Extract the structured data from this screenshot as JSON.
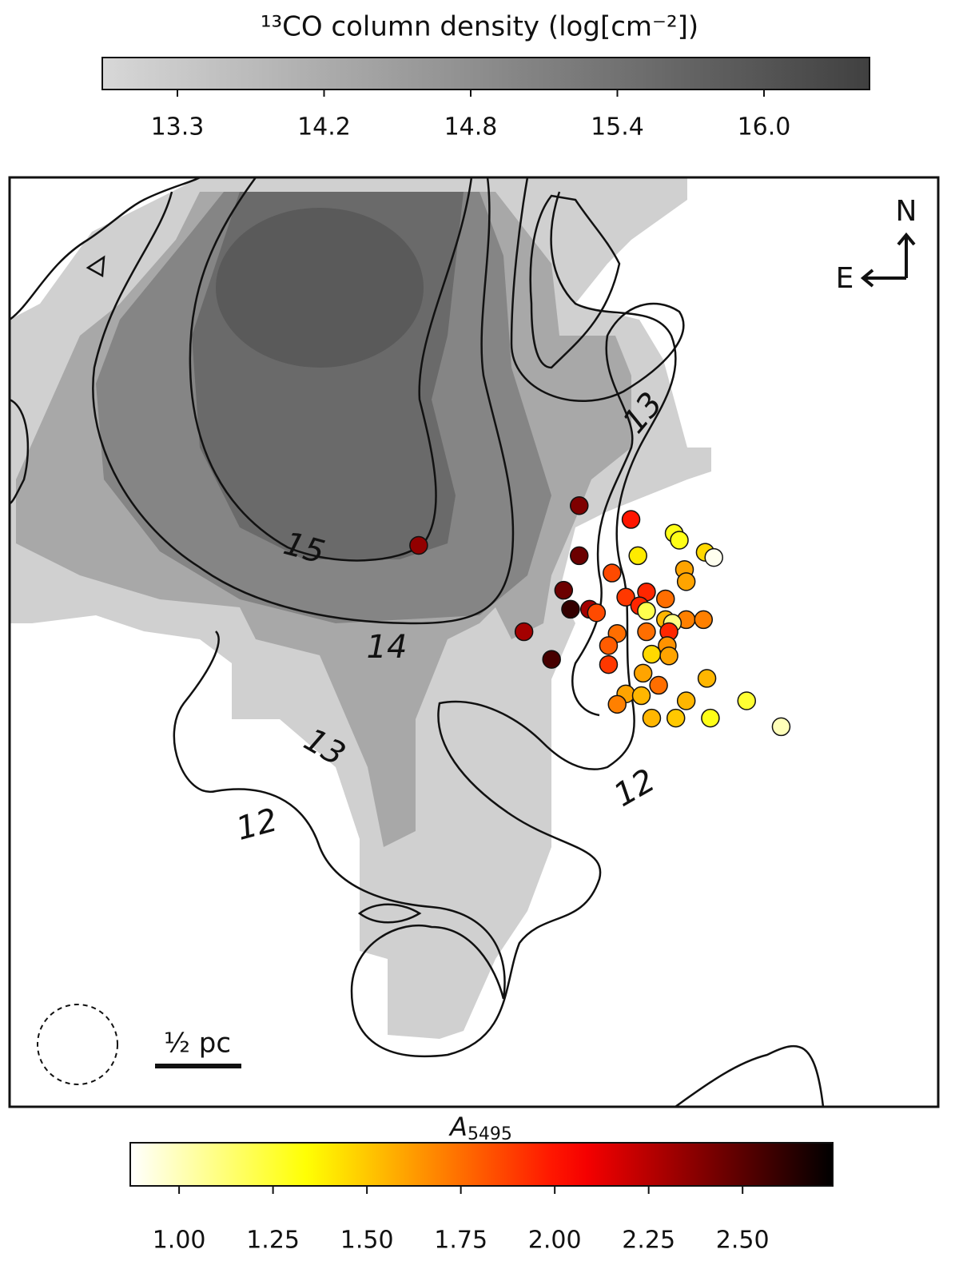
{
  "chart_data": {
    "type": "scatter",
    "density_colorbar": {
      "title": "¹³CO column density (log[cm⁻²])",
      "ticks": [
        13.3,
        14.2,
        14.8,
        15.4,
        {
          "value": 16,
          "label": "16.0"
        }
      ],
      "colormap": "gray_r"
    },
    "colorbar": {
      "label": "A",
      "label_subscript": "5495",
      "clim": [
        0.87,
        2.74
      ],
      "ticks": [
        {
          "value": 1,
          "label": "1.00"
        },
        {
          "value": 1.25,
          "label": "1.25"
        },
        {
          "value": 1.5,
          "label": "1.50"
        },
        {
          "value": 1.75,
          "label": "1.75"
        },
        {
          "value": 2,
          "label": "2.00"
        },
        {
          "value": 2.25,
          "label": "2.25"
        },
        {
          "value": 2.5,
          "label": "2.50"
        }
      ],
      "colormap": "hot_r"
    },
    "contour_labels": [
      15,
      14,
      13,
      13,
      12,
      12
    ],
    "scale_bar": "½ pc",
    "compass": {
      "north": "N",
      "east": "E"
    },
    "xlim": [
      0,
      5.38
    ],
    "ylim": [
      0,
      5.38
    ],
    "x": [
      2.37,
      3.3,
      3.6,
      3.85,
      3.88,
      3.64,
      4.03,
      4.08,
      3.3,
      3.49,
      3.91,
      3.21,
      3.57,
      3.69,
      3.8,
      3.92,
      3.25,
      3.36,
      3.4,
      3.65,
      3.69,
      3.8,
      3.92,
      4.02,
      3.84,
      2.98,
      3.52,
      3.69,
      3.82,
      3.47,
      3.81,
      3.72,
      3.14,
      3.47,
      3.82,
      3.67,
      3.76,
      4.04,
      3.57,
      3.66,
      3.92,
      3.52,
      4.27,
      4.06,
      3.72,
      3.86,
      4.47
    ],
    "y": [
      3.25,
      3.48,
      3.4,
      3.32,
      3.28,
      3.19,
      3.21,
      3.18,
      3.19,
      3.09,
      3.11,
      2.99,
      2.95,
      2.98,
      2.94,
      3.04,
      2.88,
      2.88,
      2.86,
      2.9,
      2.87,
      2.82,
      2.82,
      2.82,
      2.8,
      2.75,
      2.74,
      2.75,
      2.75,
      2.67,
      2.67,
      2.62,
      2.59,
      2.56,
      2.61,
      2.51,
      2.44,
      2.48,
      2.39,
      2.38,
      2.35,
      2.33,
      2.35,
      2.25,
      2.25,
      2.25,
      2.2
    ],
    "values": [
      2.35,
      2.4,
      2.0,
      1.3,
      1.3,
      1.4,
      1.45,
      0.9,
      2.45,
      1.85,
      1.6,
      2.45,
      1.9,
      1.95,
      1.75,
      1.6,
      2.6,
      2.3,
      1.85,
      1.95,
      1.2,
      1.55,
      1.7,
      1.7,
      1.1,
      2.3,
      1.75,
      1.75,
      1.95,
      1.8,
      1.65,
      1.45,
      2.55,
      1.9,
      1.6,
      1.6,
      1.75,
      1.55,
      1.6,
      1.55,
      1.55,
      1.7,
      1.25,
      1.3,
      1.55,
      1.5,
      1.0
    ]
  }
}
